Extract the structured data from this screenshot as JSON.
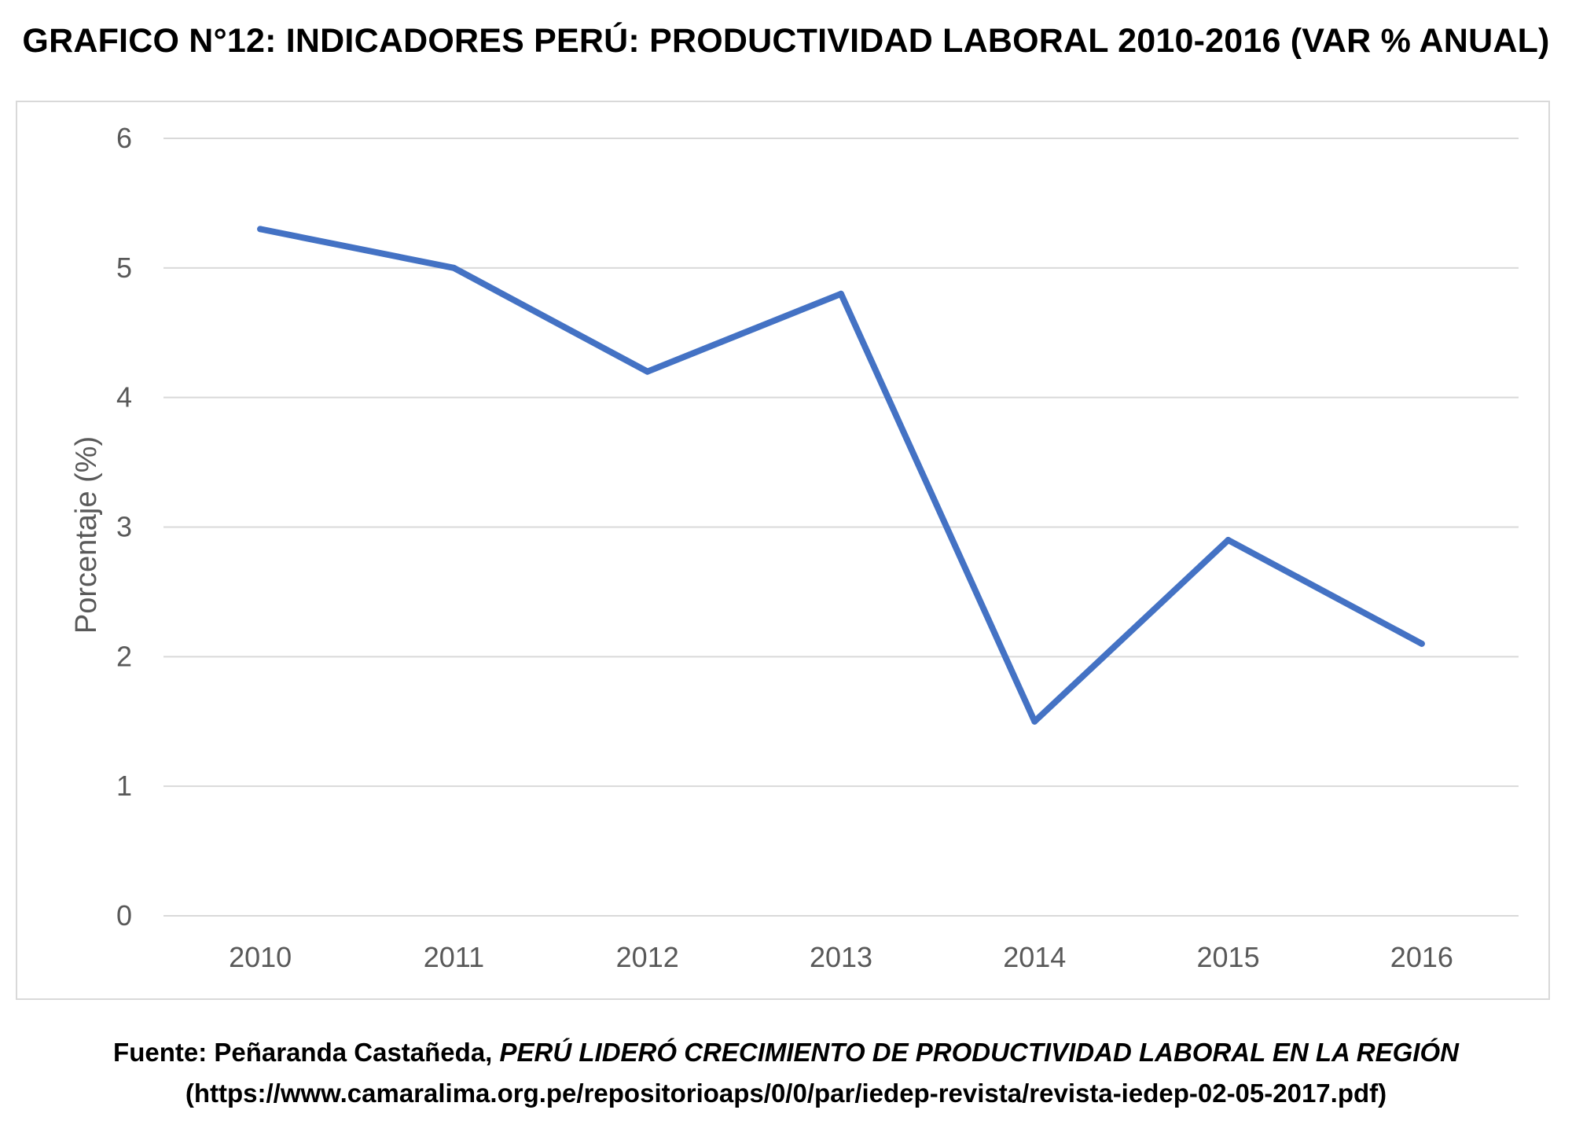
{
  "title": "GRAFICO N°12: INDICADORES PERÚ: PRODUCTIVIDAD LABORAL 2010-2016 (VAR % ANUAL)",
  "source": {
    "prefix": "Fuente: Peñaranda Castañeda, ",
    "article": "PERÚ LIDERÓ CRECIMIENTO DE PRODUCTIVIDAD LABORAL EN LA REGIÓN",
    "url": "(https://www.camaralima.org.pe/repositorioaps/0/0/par/iedep-revista/revista-iedep-02-05-2017.pdf)"
  },
  "colors": {
    "line": "#4472c4",
    "grid": "#d9d9d9",
    "tick_text": "#595959"
  },
  "chart_data": {
    "type": "line",
    "title": "GRAFICO N°12: INDICADORES PERÚ: PRODUCTIVIDAD LABORAL 2010-2016 (VAR % ANUAL)",
    "xlabel": "",
    "ylabel": "Porcentaje (%)",
    "categories": [
      "2010",
      "2011",
      "2012",
      "2013",
      "2014",
      "2015",
      "2016"
    ],
    "series": [
      {
        "values": [
          5.3,
          5.0,
          4.2,
          4.8,
          1.5,
          2.9,
          2.1
        ]
      }
    ],
    "ylim": [
      0,
      6
    ],
    "yticks": [
      0,
      1,
      2,
      3,
      4,
      5,
      6
    ],
    "grid": true,
    "legend": "none"
  }
}
